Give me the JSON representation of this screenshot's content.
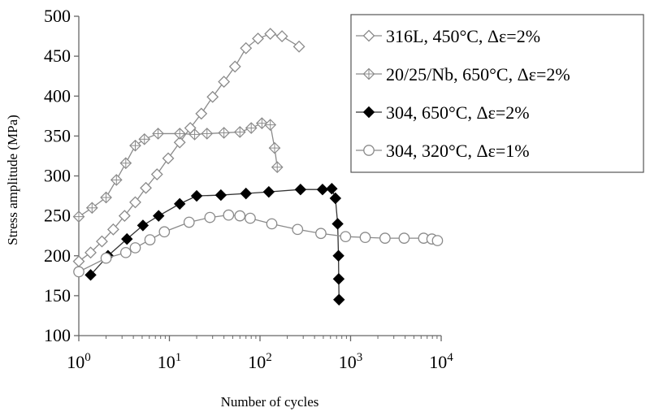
{
  "chart_data": {
    "type": "line",
    "title": "",
    "xlabel": "Number of cycles",
    "ylabel": "Stress amplitude (MPa)",
    "xscale": "log",
    "xlim": [
      1,
      10000
    ],
    "ylim": [
      100,
      500
    ],
    "x_ticks": [
      {
        "value": 1,
        "base": "10",
        "exp": "0"
      },
      {
        "value": 10,
        "base": "10",
        "exp": "1"
      },
      {
        "value": 100,
        "base": "10",
        "exp": "2"
      },
      {
        "value": 1000,
        "base": "10",
        "exp": "3"
      },
      {
        "value": 10000,
        "base": "10",
        "exp": "4"
      }
    ],
    "y_ticks": [
      "100",
      "150",
      "200",
      "250",
      "300",
      "350",
      "400",
      "450",
      "500"
    ],
    "grid": false,
    "legend_position": "top-right",
    "series": [
      {
        "name": "316L, 450°C, Δε=2%",
        "marker": "diamond-open",
        "color": "#8a8a8a",
        "x": [
          1,
          1.35,
          1.8,
          2.4,
          3.2,
          4.2,
          5.5,
          7.3,
          9.7,
          13,
          17,
          22.5,
          30,
          40,
          53,
          70,
          95,
          130,
          175,
          270
        ],
        "y": [
          193,
          204,
          218,
          233,
          250,
          267,
          285,
          302,
          322,
          342,
          360,
          378,
          399,
          418,
          437,
          460,
          472,
          478,
          475,
          462
        ]
      },
      {
        "name": "20/25/Nb, 650°C, Δε=2%",
        "marker": "diamond-cross",
        "color": "#8a8a8a",
        "x": [
          1,
          1.4,
          2,
          2.6,
          3.3,
          4.2,
          5.3,
          7.5,
          13,
          19,
          26,
          40,
          60,
          80,
          105,
          130,
          145,
          155
        ],
        "y": [
          249,
          260,
          273,
          295,
          316,
          338,
          346,
          353,
          353,
          352,
          353,
          354,
          355,
          360,
          366,
          364,
          335,
          311
        ]
      },
      {
        "name": "304, 650°C, Δε=2%",
        "marker": "diamond-filled",
        "color": "#000000",
        "x": [
          1.35,
          2.1,
          3.4,
          5.1,
          7.6,
          13,
          20,
          37,
          70,
          125,
          280,
          490,
          620,
          680,
          720,
          735,
          740,
          745
        ],
        "y": [
          176,
          200,
          221,
          238,
          250,
          265,
          275,
          276,
          278,
          280,
          283,
          283,
          284,
          272,
          240,
          200,
          171,
          145
        ]
      },
      {
        "name": "304, 320°C, Δε=1%",
        "marker": "circle-open",
        "color": "#8a8a8a",
        "x": [
          1,
          2,
          3.3,
          4.2,
          6.1,
          8.8,
          16.5,
          28,
          45,
          60,
          78,
          135,
          260,
          470,
          880,
          1450,
          2400,
          3900,
          6400,
          7900,
          9100
        ],
        "y": [
          180,
          197,
          204,
          210,
          220,
          230,
          242,
          248,
          251,
          250,
          247,
          240,
          233,
          228,
          224,
          223,
          222,
          222,
          222,
          221,
          219
        ]
      }
    ]
  }
}
